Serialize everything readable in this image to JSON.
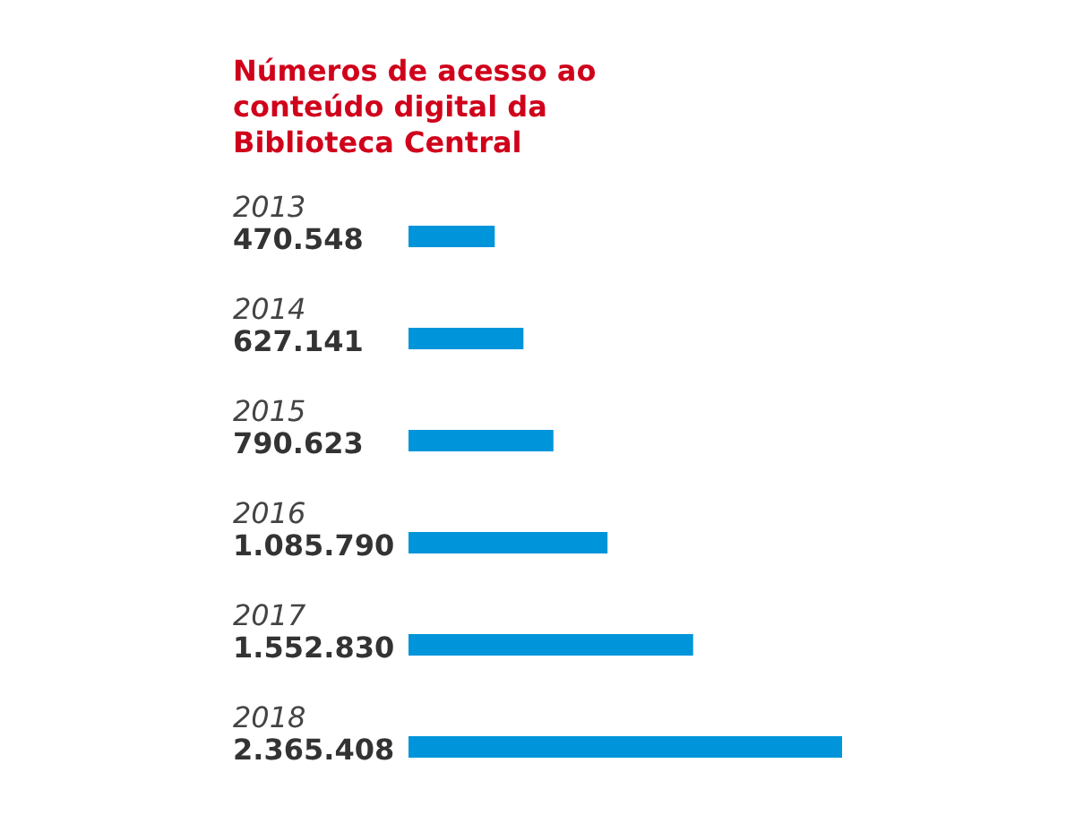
{
  "chart_data": {
    "type": "bar",
    "orientation": "horizontal",
    "title": "Números de acesso ao conteúdo digital da Biblioteca Central",
    "categories": [
      "2013",
      "2014",
      "2015",
      "2016",
      "2017",
      "2018"
    ],
    "values": [
      470548,
      627141,
      790623,
      1085790,
      1552830,
      2365408
    ],
    "value_labels": [
      "470.548",
      "627.141",
      "790.623",
      "1.085.790",
      "1.552.830",
      "2.365.408"
    ],
    "color": "#0095da"
  }
}
